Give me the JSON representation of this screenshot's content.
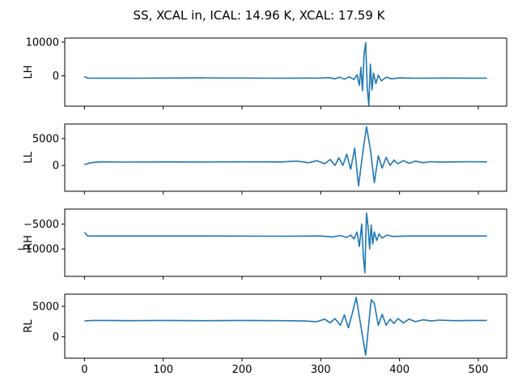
{
  "figure": {
    "suptitle": "SS, XCAL in, ICAL: 14.96 K, XCAL: 17.59 K"
  },
  "colors": {
    "line": "#1f77b4"
  },
  "chart_data": [
    {
      "type": "line",
      "ylabel": "LH",
      "xlim": [
        -25,
        536
      ],
      "ylim": [
        -9000,
        11200
      ],
      "yticks": [
        0,
        10000
      ],
      "ytick_labels": [
        "0",
        "10000"
      ],
      "xticks": [
        0,
        100,
        200,
        300,
        400,
        500
      ],
      "xtick_labels": [],
      "series": [
        {
          "x": [
            0,
            3,
            4,
            60,
            150,
            250,
            300,
            310,
            318,
            324,
            330,
            336,
            342,
            346,
            349,
            351,
            353,
            355,
            357,
            359,
            361,
            363,
            365,
            367,
            370,
            373,
            377,
            383,
            390,
            400,
            420,
            460,
            511
          ],
          "y": [
            -300,
            -500,
            -700,
            -700,
            -600,
            -700,
            -650,
            -500,
            -900,
            -400,
            -1000,
            -300,
            -1100,
            300,
            -2800,
            2500,
            -4400,
            6500,
            9800,
            -3500,
            -8700,
            3500,
            -4200,
            800,
            -2300,
            200,
            -1500,
            -400,
            -900,
            -600,
            -700,
            -650,
            -700
          ]
        }
      ]
    },
    {
      "type": "line",
      "ylabel": "LL",
      "xlim": [
        -25,
        536
      ],
      "ylim": [
        -4800,
        7700
      ],
      "yticks": [
        0,
        5000
      ],
      "ytick_labels": [
        "0",
        "5000"
      ],
      "xticks": [
        0,
        100,
        200,
        300,
        400,
        500
      ],
      "xtick_labels": [],
      "series": [
        {
          "x": [
            0,
            8,
            20,
            50,
            100,
            150,
            200,
            250,
            270,
            285,
            295,
            305,
            312,
            318,
            323,
            328,
            333,
            338,
            343,
            348,
            353,
            358,
            363,
            368,
            373,
            378,
            383,
            388,
            393,
            398,
            405,
            412,
            420,
            430,
            440,
            450,
            470,
            490,
            511
          ],
          "y": [
            150,
            500,
            650,
            620,
            650,
            640,
            660,
            650,
            800,
            500,
            900,
            300,
            1100,
            0,
            1400,
            0,
            2100,
            -700,
            3200,
            -3800,
            2000,
            7200,
            3000,
            -3200,
            1800,
            -500,
            1500,
            0,
            1000,
            300,
            900,
            400,
            800,
            500,
            700,
            600,
            650,
            700,
            650
          ]
        }
      ]
    },
    {
      "type": "line",
      "ylabel": "RH",
      "xlim": [
        -25,
        536
      ],
      "ylim": [
        -15500,
        -2000
      ],
      "yticks": [
        -5000,
        -10000
      ],
      "ytick_labels": [
        "−5000",
        "−10000"
      ],
      "xticks": [
        0,
        100,
        200,
        300,
        400,
        500
      ],
      "xtick_labels": [],
      "series": [
        {
          "x": [
            0,
            2,
            4,
            60,
            150,
            250,
            300,
            315,
            325,
            333,
            338,
            342,
            346,
            349,
            352,
            354,
            356,
            358,
            360,
            362,
            364,
            366,
            368,
            371,
            374,
            378,
            384,
            392,
            410,
            460,
            511
          ],
          "y": [
            -6700,
            -7000,
            -7400,
            -7400,
            -7400,
            -7450,
            -7400,
            -7600,
            -7300,
            -7700,
            -7200,
            -8000,
            -6600,
            -9500,
            -5000,
            -11500,
            -14800,
            -2800,
            -5400,
            -10000,
            -5200,
            -9000,
            -6600,
            -8300,
            -7000,
            -7800,
            -7200,
            -7500,
            -7400,
            -7400,
            -7400
          ]
        }
      ]
    },
    {
      "type": "line",
      "ylabel": "RL",
      "xlim": [
        -25,
        536
      ],
      "ylim": [
        -3500,
        7000
      ],
      "yticks": [
        0,
        5000
      ],
      "ytick_labels": [
        "0",
        "5000"
      ],
      "xticks": [
        0,
        100,
        200,
        300,
        400,
        500
      ],
      "xtick_labels": [
        "0",
        "100",
        "200",
        "300",
        "400",
        "500"
      ],
      "series": [
        {
          "x": [
            0,
            10,
            30,
            60,
            100,
            150,
            200,
            250,
            280,
            295,
            305,
            312,
            318,
            325,
            330,
            335,
            340,
            345,
            350,
            357,
            364,
            368,
            373,
            378,
            383,
            388,
            393,
            398,
            405,
            412,
            420,
            430,
            440,
            450,
            470,
            490,
            511
          ],
          "y": [
            2600,
            2700,
            2700,
            2650,
            2700,
            2650,
            2700,
            2650,
            2600,
            2500,
            2900,
            2300,
            3000,
            1900,
            3600,
            1500,
            3800,
            6500,
            2500,
            -3000,
            6100,
            5500,
            1900,
            3700,
            1900,
            2900,
            2200,
            3000,
            2300,
            2900,
            2500,
            2800,
            2600,
            2750,
            2650,
            2700,
            2700
          ]
        }
      ]
    }
  ]
}
